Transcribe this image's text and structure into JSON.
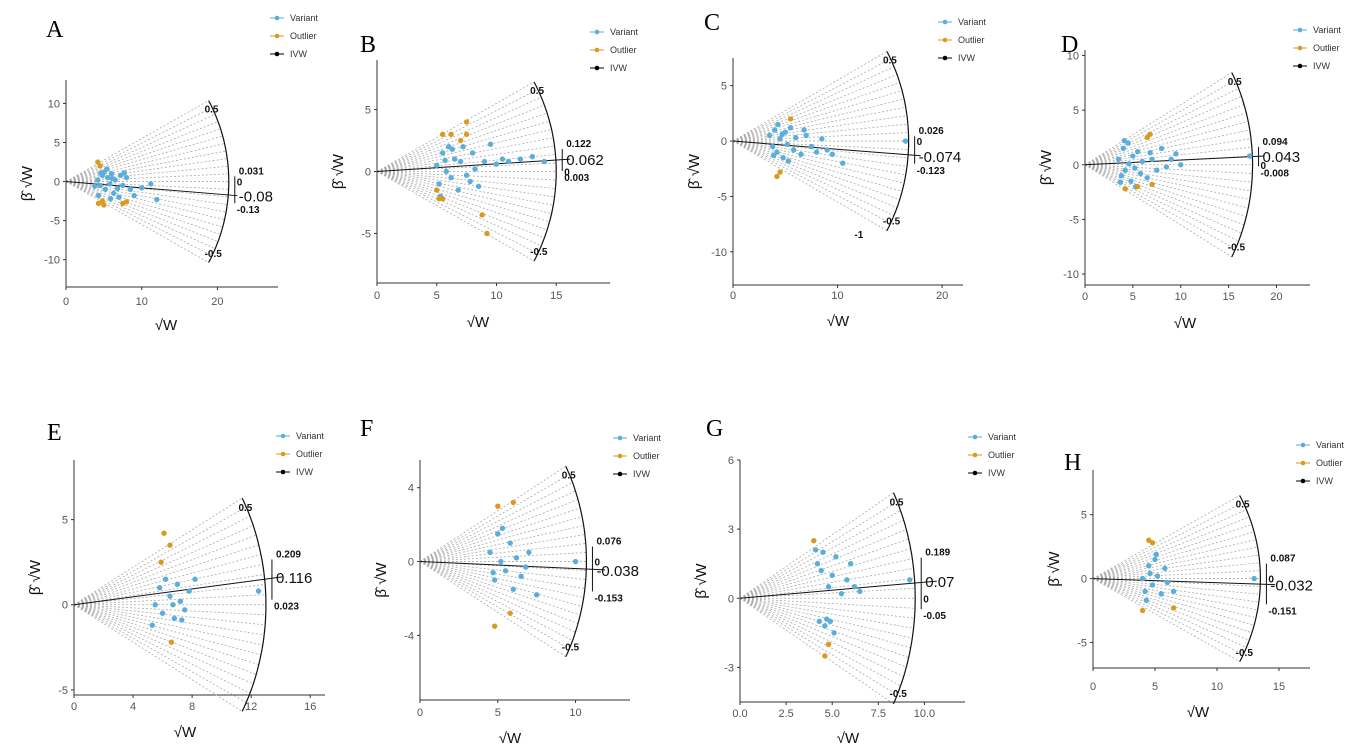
{
  "colors": {
    "variant": "#5aaedb",
    "outlier": "#d99a1e",
    "ivw": "#000000"
  },
  "legend": {
    "items": [
      "Variant",
      "Outlier",
      "IVW"
    ]
  },
  "chart_data": [
    {
      "panel": "A",
      "type": "scatter",
      "xlabel": "√W_j",
      "ylabel": "β̂_j √W_j",
      "xlim": [
        0,
        28
      ],
      "ylim": [
        -13.5,
        13
      ],
      "xticks": [
        0,
        10,
        20
      ],
      "yticks": [
        -10,
        -5,
        0,
        5,
        10
      ],
      "radius": 21.5,
      "ivw_estimate": -0.08,
      "ci_upper": 0.031,
      "ci_lower": -0.13,
      "arc_labels": [
        "0.5",
        "-0.5",
        "0",
        "0.031",
        "-0.08",
        "-0.13"
      ],
      "variants": [
        [
          4.2,
          0.2
        ],
        [
          4.5,
          -0.5
        ],
        [
          4.8,
          0.8
        ],
        [
          5,
          1.2
        ],
        [
          5.2,
          -1
        ],
        [
          5.5,
          0.5
        ],
        [
          5.8,
          -0.3
        ],
        [
          6,
          1
        ],
        [
          6.3,
          -1.5
        ],
        [
          6.5,
          0.2
        ],
        [
          7,
          -2
        ],
        [
          7.2,
          0.8
        ],
        [
          7.5,
          -0.5
        ],
        [
          8,
          0.5
        ],
        [
          8.5,
          -1
        ],
        [
          9,
          -1.8
        ],
        [
          10,
          -0.8
        ],
        [
          11.2,
          -0.3
        ],
        [
          12,
          -2.3
        ],
        [
          4.3,
          -1.8
        ],
        [
          5.4,
          1.6
        ],
        [
          6.8,
          -0.9
        ],
        [
          4.6,
          1.1
        ],
        [
          5.9,
          -2.2
        ],
        [
          3.8,
          -0.6
        ],
        [
          7.7,
          1.1
        ],
        [
          6.1,
          0.4
        ]
      ],
      "outliers": [
        [
          4.2,
          2.5
        ],
        [
          4.5,
          2
        ],
        [
          4.3,
          -2.8
        ],
        [
          5,
          -3
        ],
        [
          7.5,
          -2.8
        ],
        [
          8,
          -2.6
        ],
        [
          4.8,
          -2.5
        ]
      ]
    },
    {
      "panel": "B",
      "type": "scatter",
      "xlabel": "√W_j",
      "ylabel": "β̂_j √W_j",
      "xlim": [
        0,
        19.5
      ],
      "ylim": [
        -9,
        9
      ],
      "xticks": [
        0,
        5,
        10,
        15
      ],
      "yticks": [
        -5,
        0,
        5
      ],
      "radius": 15,
      "ivw_estimate": 0.062,
      "ci_upper": 0.122,
      "ci_lower": 0.003,
      "arc_labels": [
        "0.5",
        "-0.5",
        "0",
        "0.122",
        "0.062",
        "0.003"
      ],
      "variants": [
        [
          5,
          0.5
        ],
        [
          5.2,
          -1
        ],
        [
          5.5,
          1.5
        ],
        [
          5.8,
          0
        ],
        [
          6,
          2
        ],
        [
          6.2,
          -0.5
        ],
        [
          6.5,
          1
        ],
        [
          6.8,
          -1.5
        ],
        [
          7,
          0.8
        ],
        [
          7.2,
          2
        ],
        [
          7.5,
          -0.3
        ],
        [
          8,
          1.5
        ],
        [
          8.2,
          0.2
        ],
        [
          8.5,
          -1.2
        ],
        [
          9,
          0.8
        ],
        [
          9.5,
          2.2
        ],
        [
          10,
          0.6
        ],
        [
          10.5,
          1
        ],
        [
          11,
          0.8
        ],
        [
          12,
          1
        ],
        [
          13,
          1.2
        ],
        [
          14,
          0.8
        ],
        [
          5.3,
          -2
        ],
        [
          6.3,
          1.8
        ],
        [
          7.8,
          -0.8
        ],
        [
          5.7,
          0.9
        ]
      ],
      "outliers": [
        [
          5.5,
          3
        ],
        [
          6.2,
          3
        ],
        [
          7.5,
          4
        ],
        [
          7.5,
          3
        ],
        [
          7,
          2.5
        ],
        [
          5,
          -1.5
        ],
        [
          5.2,
          -2.2
        ],
        [
          5.5,
          -2.2
        ],
        [
          8.8,
          -3.5
        ],
        [
          9.2,
          -5
        ]
      ]
    },
    {
      "panel": "C",
      "type": "scatter",
      "xlabel": "√W_j",
      "ylabel": "β̂_j √W_j",
      "xlim": [
        0,
        22
      ],
      "ylim": [
        -13,
        7.5
      ],
      "xticks": [
        0,
        10,
        20
      ],
      "yticks": [
        -10,
        -5,
        0,
        5
      ],
      "radius": 16.8,
      "ivw_estimate": -0.074,
      "ci_upper": 0.026,
      "ci_lower": -0.123,
      "arc_labels": [
        "0.5",
        "-0.5",
        "-1",
        "0",
        "0.026",
        "-0.074",
        "-0.123"
      ],
      "variants": [
        [
          3.5,
          0.5
        ],
        [
          3.8,
          -0.5
        ],
        [
          4,
          1
        ],
        [
          4.2,
          -1
        ],
        [
          4.5,
          0.2
        ],
        [
          4.8,
          -1.5
        ],
        [
          5,
          0.8
        ],
        [
          5.2,
          -0.3
        ],
        [
          5.5,
          1.2
        ],
        [
          5.8,
          -0.8
        ],
        [
          6,
          0.3
        ],
        [
          6.5,
          -1.2
        ],
        [
          7,
          0.5
        ],
        [
          7.5,
          -0.5
        ],
        [
          8,
          -1
        ],
        [
          8.5,
          0.2
        ],
        [
          9,
          -0.8
        ],
        [
          9.5,
          -1.2
        ],
        [
          10.5,
          -2
        ],
        [
          16.5,
          0
        ],
        [
          4.3,
          1.5
        ],
        [
          5.3,
          -1.8
        ],
        [
          6.8,
          1
        ],
        [
          3.9,
          -1.3
        ],
        [
          4.7,
          0.6
        ]
      ],
      "outliers": [
        [
          5.5,
          2
        ],
        [
          4.2,
          -3.2
        ],
        [
          4.5,
          -2.8
        ]
      ]
    },
    {
      "panel": "D",
      "type": "scatter",
      "xlabel": "√W_j",
      "ylabel": "β̂_j √W_j",
      "xlim": [
        0,
        23.5
      ],
      "ylim": [
        -11,
        10.5
      ],
      "xticks": [
        0,
        5,
        10,
        15,
        20
      ],
      "yticks": [
        -10,
        -5,
        0,
        5,
        10
      ],
      "radius": 17.5,
      "ivw_estimate": 0.043,
      "ci_upper": 0.094,
      "ci_lower": -0.008,
      "arc_labels": [
        "0.5",
        "-0.5",
        "0",
        "0.094",
        "0.043",
        "-0.008"
      ],
      "variants": [
        [
          3.5,
          0.5
        ],
        [
          3.8,
          -1
        ],
        [
          4,
          1.5
        ],
        [
          4.2,
          -0.5
        ],
        [
          4.5,
          2
        ],
        [
          4.8,
          -1.5
        ],
        [
          5,
          0.8
        ],
        [
          5.2,
          -0.3
        ],
        [
          5.5,
          1.2
        ],
        [
          5.8,
          -0.8
        ],
        [
          6,
          0.3
        ],
        [
          6.5,
          -1.2
        ],
        [
          7,
          0.5
        ],
        [
          7.5,
          -0.5
        ],
        [
          8,
          1.5
        ],
        [
          8.5,
          -0.2
        ],
        [
          9,
          0.5
        ],
        [
          9.5,
          1
        ],
        [
          10,
          0
        ],
        [
          17.2,
          0.8
        ],
        [
          4.1,
          2.2
        ],
        [
          5.3,
          -2
        ],
        [
          6.8,
          1.1
        ],
        [
          3.7,
          -1.6
        ],
        [
          4.6,
          0.1
        ]
      ],
      "outliers": [
        [
          6.5,
          2.5
        ],
        [
          6.8,
          2.8
        ],
        [
          4.2,
          -2.2
        ],
        [
          5.5,
          -2
        ],
        [
          7,
          -1.8
        ]
      ]
    },
    {
      "panel": "E",
      "type": "scatter",
      "xlabel": "√W_j",
      "ylabel": "β̂_j √W_j",
      "xlim": [
        0,
        17
      ],
      "ylim": [
        -5.3,
        8.5
      ],
      "xticks": [
        0,
        4,
        8,
        12,
        16
      ],
      "yticks": [
        -5,
        0,
        5
      ],
      "radius": 13,
      "ivw_estimate": 0.116,
      "ci_upper": 0.209,
      "ci_lower": 0.023,
      "arc_labels": [
        "0.5",
        "0.209",
        "0.116",
        "0.023"
      ],
      "variants": [
        [
          5.5,
          0
        ],
        [
          5.8,
          1
        ],
        [
          6,
          -0.5
        ],
        [
          6.2,
          1.5
        ],
        [
          6.5,
          0.5
        ],
        [
          6.8,
          -0.8
        ],
        [
          7,
          1.2
        ],
        [
          7.2,
          0.2
        ],
        [
          7.5,
          -0.3
        ],
        [
          7.8,
          0.8
        ],
        [
          8.2,
          1.5
        ],
        [
          12.5,
          0.8
        ],
        [
          5.3,
          -1.2
        ],
        [
          6.7,
          0
        ],
        [
          7.3,
          -0.9
        ]
      ],
      "outliers": [
        [
          5.9,
          2.5
        ],
        [
          6.1,
          4.2
        ],
        [
          6.5,
          3.5
        ],
        [
          6.6,
          -2.2
        ]
      ]
    },
    {
      "panel": "F",
      "type": "scatter",
      "xlabel": "√W_j",
      "ylabel": "β̂_j √W_j",
      "xlim": [
        0,
        13.5
      ],
      "ylim": [
        -7.5,
        5.5
      ],
      "xticks": [
        0,
        5,
        10
      ],
      "yticks": [
        -4,
        0,
        4
      ],
      "radius": 10.7,
      "ivw_estimate": -0.038,
      "ci_upper": 0.076,
      "ci_lower": -0.153,
      "arc_labels": [
        "0.5",
        "-0.5",
        "0",
        "0.076",
        "-0.038",
        "-0.153"
      ],
      "variants": [
        [
          4.5,
          0.5
        ],
        [
          4.8,
          -1
        ],
        [
          5,
          1.5
        ],
        [
          5.2,
          0
        ],
        [
          5.5,
          -0.5
        ],
        [
          5.8,
          1
        ],
        [
          6,
          -1.5
        ],
        [
          6.2,
          0.2
        ],
        [
          6.5,
          -0.8
        ],
        [
          7,
          0.5
        ],
        [
          7.5,
          -1.8
        ],
        [
          10,
          0
        ],
        [
          5.3,
          1.8
        ],
        [
          4.7,
          -0.6
        ],
        [
          6.8,
          -0.3
        ]
      ],
      "outliers": [
        [
          5,
          3
        ],
        [
          6,
          3.2
        ],
        [
          4.8,
          -3.5
        ],
        [
          5.8,
          -2.8
        ]
      ]
    },
    {
      "panel": "G",
      "type": "scatter",
      "xlabel": "√W_j",
      "ylabel": "β̂_j √W_j",
      "xlim": [
        0,
        12.2
      ],
      "ylim": [
        -4.5,
        6
      ],
      "xticks": [
        0.0,
        2.5,
        5.0,
        7.5,
        10.0
      ],
      "yticks": [
        -3,
        0,
        3,
        6
      ],
      "radius": 9.5,
      "ivw_estimate": 0.07,
      "ci_upper": 0.189,
      "ci_lower": -0.05,
      "arc_labels": [
        "0.5",
        "-0.5",
        "0",
        "0.189",
        "0.07",
        "-0.05"
      ],
      "variants": [
        [
          4.2,
          1.5
        ],
        [
          4.5,
          2
        ],
        [
          4.8,
          0.5
        ],
        [
          5,
          1
        ],
        [
          5.2,
          1.8
        ],
        [
          5.5,
          0.2
        ],
        [
          5.8,
          0.8
        ],
        [
          6,
          1.5
        ],
        [
          6.2,
          0.5
        ],
        [
          6.5,
          0.3
        ],
        [
          4.3,
          -1
        ],
        [
          4.6,
          -1.2
        ],
        [
          4.9,
          -1
        ],
        [
          5.1,
          -1.5
        ],
        [
          4.4,
          1.2
        ],
        [
          9.2,
          0.8
        ],
        [
          4.1,
          2.1
        ],
        [
          4.7,
          -0.9
        ]
      ],
      "outliers": [
        [
          4,
          2.5
        ],
        [
          4.8,
          -2
        ],
        [
          4.6,
          -2.5
        ]
      ]
    },
    {
      "panel": "H",
      "type": "scatter",
      "xlabel": "√W_j",
      "ylabel": "β̂_j √W_j",
      "xlim": [
        0,
        17.5
      ],
      "ylim": [
        -7,
        8.5
      ],
      "xticks": [
        0,
        5,
        10,
        15
      ],
      "yticks": [
        -5,
        0,
        5
      ],
      "radius": 13.5,
      "ivw_estimate": -0.032,
      "ci_upper": 0.087,
      "ci_lower": -0.151,
      "arc_labels": [
        "0.5",
        "-0.5",
        "0",
        "0.087",
        "-0.032",
        "-0.151"
      ],
      "variants": [
        [
          4,
          0
        ],
        [
          4.2,
          -1
        ],
        [
          4.5,
          1
        ],
        [
          4.8,
          -0.5
        ],
        [
          5,
          1.5
        ],
        [
          5.2,
          0.2
        ],
        [
          5.5,
          -1.2
        ],
        [
          5.8,
          0.8
        ],
        [
          6,
          -0.3
        ],
        [
          6.5,
          -1
        ],
        [
          13,
          0
        ],
        [
          4.3,
          -1.7
        ],
        [
          5.1,
          1.9
        ],
        [
          4.6,
          0.4
        ]
      ],
      "outliers": [
        [
          4.5,
          3
        ],
        [
          4.8,
          2.8
        ],
        [
          4,
          -2.5
        ],
        [
          6.5,
          -2.3
        ]
      ]
    }
  ]
}
